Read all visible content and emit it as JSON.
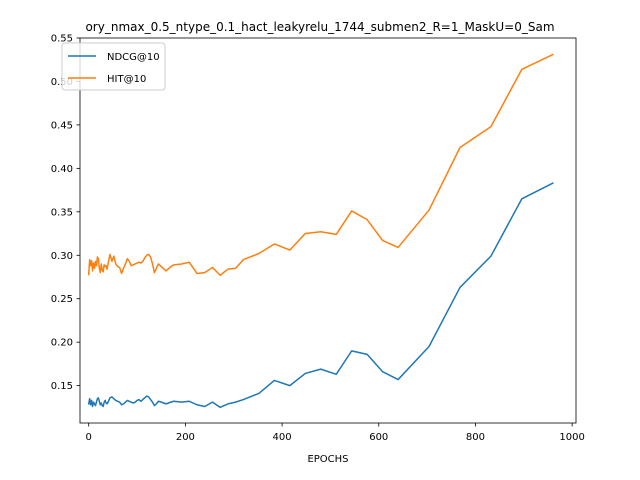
{
  "chart_data": {
    "type": "line",
    "title": "ory_nmax_0.5_ntype_0.1_hact_leakyrelu_1744_submen2_R=1_MaskU=0_Sam",
    "xlabel": "EPOCHS",
    "ylabel": "",
    "xlim": [
      -18,
      1008
    ],
    "ylim": [
      0.107,
      0.55
    ],
    "xticks": [
      0,
      200,
      400,
      600,
      800,
      1000
    ],
    "yticks": [
      0.15,
      0.2,
      0.25,
      0.3,
      0.35,
      0.4,
      0.45,
      0.5,
      0.55
    ],
    "xtick_labels": [
      "0",
      "200",
      "400",
      "600",
      "800",
      "1000"
    ],
    "ytick_labels": [
      "0.15",
      "0.20",
      "0.25",
      "0.30",
      "0.35",
      "0.40",
      "0.45",
      "0.50",
      "0.55"
    ],
    "legend_position": "upper-left",
    "grid": false,
    "series": [
      {
        "name": "NDCG@10",
        "color": "#1f77b4",
        "x": [
          0,
          2,
          4,
          6,
          8,
          10,
          12,
          14,
          16,
          18,
          20,
          22,
          24,
          26,
          28,
          30,
          32,
          34,
          36,
          38,
          40,
          44,
          48,
          52,
          56,
          60,
          64,
          68,
          72,
          76,
          80,
          84,
          88,
          92,
          96,
          100,
          104,
          108,
          112,
          116,
          120,
          124,
          128,
          132,
          136,
          140,
          144,
          150,
          160,
          170,
          176,
          192,
          208,
          224,
          240,
          256,
          272,
          288,
          304,
          320,
          352,
          384,
          416,
          448,
          480,
          512,
          544,
          576,
          608,
          640,
          704,
          768,
          832,
          896,
          960
        ],
        "y": [
          0.129,
          0.135,
          0.128,
          0.133,
          0.126,
          0.131,
          0.129,
          0.127,
          0.131,
          0.135,
          0.136,
          0.132,
          0.128,
          0.13,
          0.127,
          0.126,
          0.131,
          0.133,
          0.13,
          0.129,
          0.131,
          0.136,
          0.137,
          0.135,
          0.133,
          0.132,
          0.131,
          0.128,
          0.129,
          0.131,
          0.133,
          0.132,
          0.131,
          0.13,
          0.131,
          0.133,
          0.134,
          0.132,
          0.134,
          0.136,
          0.138,
          0.137,
          0.134,
          0.131,
          0.127,
          0.129,
          0.132,
          0.131,
          0.129,
          0.131,
          0.132,
          0.131,
          0.132,
          0.128,
          0.126,
          0.131,
          0.125,
          0.129,
          0.131,
          0.134,
          0.141,
          0.156,
          0.15,
          0.164,
          0.169,
          0.163,
          0.19,
          0.186,
          0.166,
          0.157,
          0.195,
          0.263,
          0.299,
          0.365,
          0.383
        ]
      },
      {
        "name": "HIT@10",
        "color": "#ff7f0e",
        "x": [
          0,
          2,
          4,
          6,
          8,
          10,
          12,
          14,
          16,
          18,
          20,
          22,
          24,
          26,
          28,
          30,
          32,
          34,
          36,
          38,
          40,
          44,
          48,
          52,
          56,
          60,
          64,
          68,
          72,
          76,
          80,
          84,
          88,
          92,
          96,
          100,
          104,
          108,
          112,
          116,
          120,
          124,
          128,
          132,
          136,
          140,
          144,
          150,
          160,
          170,
          176,
          192,
          208,
          224,
          240,
          256,
          272,
          288,
          304,
          320,
          352,
          384,
          416,
          448,
          480,
          512,
          544,
          576,
          608,
          640,
          704,
          768,
          832,
          896,
          960
        ],
        "y": [
          0.278,
          0.295,
          0.288,
          0.294,
          0.282,
          0.291,
          0.285,
          0.293,
          0.288,
          0.298,
          0.296,
          0.285,
          0.28,
          0.29,
          0.283,
          0.281,
          0.289,
          0.287,
          0.288,
          0.284,
          0.29,
          0.301,
          0.293,
          0.299,
          0.29,
          0.287,
          0.286,
          0.279,
          0.285,
          0.29,
          0.296,
          0.293,
          0.288,
          0.289,
          0.29,
          0.291,
          0.292,
          0.291,
          0.293,
          0.297,
          0.3,
          0.301,
          0.298,
          0.29,
          0.28,
          0.285,
          0.29,
          0.287,
          0.282,
          0.287,
          0.289,
          0.29,
          0.292,
          0.279,
          0.28,
          0.286,
          0.277,
          0.284,
          0.285,
          0.295,
          0.302,
          0.313,
          0.306,
          0.325,
          0.327,
          0.324,
          0.351,
          0.341,
          0.317,
          0.309,
          0.352,
          0.424,
          0.448,
          0.514,
          0.531
        ]
      }
    ]
  }
}
